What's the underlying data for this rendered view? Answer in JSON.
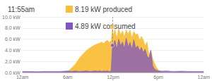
{
  "chart_data": {
    "type": "area",
    "title": "11:55am",
    "x": [
      0,
      1,
      2,
      3,
      4,
      5,
      5.5,
      6,
      6.5,
      7,
      7.5,
      8,
      8.5,
      9,
      9.5,
      10,
      10.25,
      10.5,
      10.75,
      11,
      11.25,
      11.5,
      11.75,
      11.92,
      12,
      12.25,
      12.5,
      12.75,
      13,
      13.25,
      13.5,
      13.75,
      14,
      14.25,
      14.5,
      14.75,
      15,
      15.25,
      15.5,
      15.75,
      16,
      16.25,
      16.5,
      16.75,
      17,
      17.25,
      17.5,
      17.75,
      18,
      18.25,
      18.5,
      19,
      20,
      21,
      22,
      23,
      24
    ],
    "series": [
      {
        "name": "8.19 kW produced",
        "color": "#f9bf3b",
        "values": [
          0,
          0,
          0,
          0,
          0,
          0,
          0.05,
          0.2,
          0.8,
          1.5,
          2.5,
          3.3,
          4.0,
          4.5,
          4.9,
          5.2,
          5.3,
          5.5,
          5.2,
          5.6,
          5.8,
          5.4,
          5.7,
          8.19,
          6.5,
          7.8,
          6.2,
          7.9,
          6.8,
          7.5,
          6.4,
          7.7,
          6.9,
          7.6,
          6.2,
          7.4,
          6.8,
          7.0,
          5.8,
          6.5,
          5.9,
          4.8,
          5.5,
          3.2,
          4.0,
          2.5,
          1.6,
          0.9,
          0.5,
          0.2,
          0.05,
          0,
          0,
          0,
          0,
          0,
          0
        ]
      },
      {
        "name": "4.89 kW consumed",
        "color": "#7e57c2",
        "values": [
          0.2,
          0.2,
          0.15,
          0.2,
          0.2,
          0.2,
          0.25,
          0.3,
          0.2,
          0.3,
          0.2,
          0.25,
          0.3,
          0.2,
          0.3,
          0.25,
          0.3,
          0.2,
          0.3,
          0.25,
          0.3,
          0.2,
          0.3,
          4.89,
          4.5,
          5.8,
          4.2,
          6.0,
          4.8,
          5.5,
          4.3,
          6.2,
          4.6,
          5.4,
          4.1,
          5.9,
          4.4,
          4.8,
          3.9,
          4.5,
          3.6,
          4.2,
          3.0,
          2.5,
          4.0,
          1.2,
          0.6,
          0.4,
          0.3,
          0.3,
          0.25,
          0.3,
          0.2,
          0.25,
          0.2,
          0.2,
          0.2
        ]
      }
    ],
    "cursor_x": 11.92,
    "xlim": [
      0,
      24
    ],
    "xticks": [
      {
        "value": 0,
        "label": "12am"
      },
      {
        "value": 6,
        "label": "6am"
      },
      {
        "value": 12,
        "label": "12pm"
      },
      {
        "value": 18,
        "label": "6pm"
      },
      {
        "value": 24,
        "label": "12am"
      }
    ],
    "ylim": [
      0,
      10
    ],
    "yticks": [
      {
        "value": 0,
        "label": "0.0 kW"
      },
      {
        "value": 2,
        "label": "2.0 kW"
      },
      {
        "value": 4,
        "label": "4.0 kW"
      },
      {
        "value": 6,
        "label": "6.0 kW"
      },
      {
        "value": 8,
        "label": "8.0 kW"
      },
      {
        "value": 10,
        "label": "10.0 kW"
      }
    ],
    "grid": true,
    "legend": "top"
  }
}
